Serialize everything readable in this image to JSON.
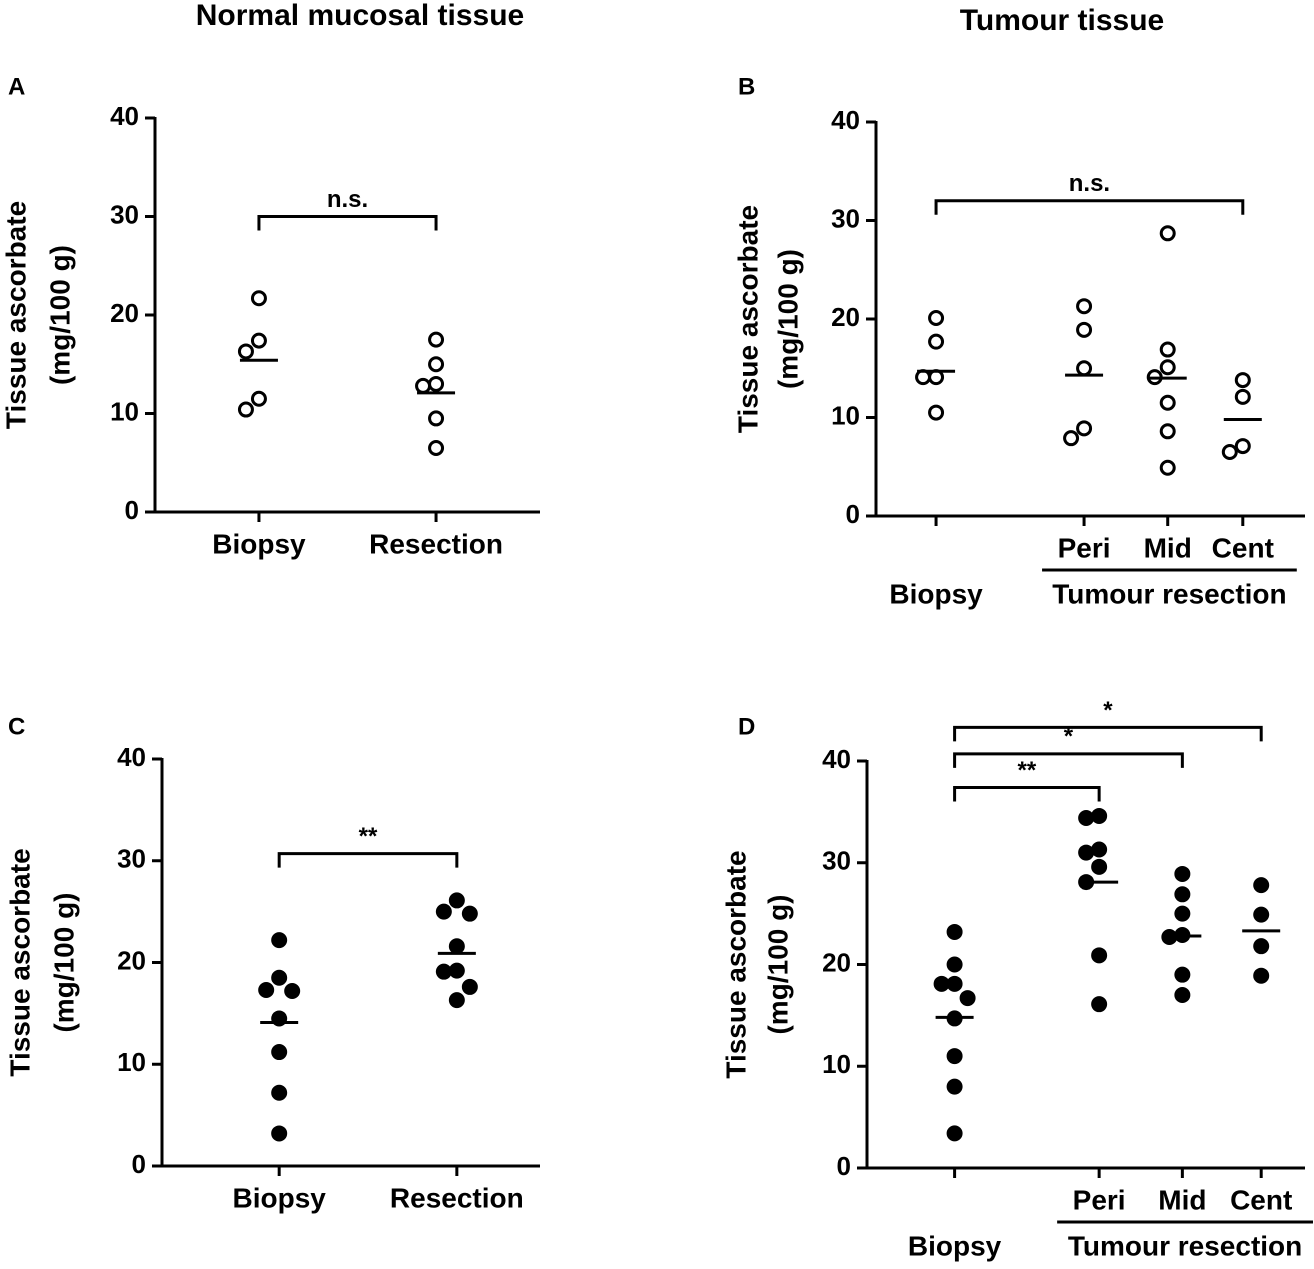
{
  "column_titles": [
    "Normal mucosal tissue",
    "Tumour tissue"
  ],
  "chart_data": [
    {
      "type": "dotplot",
      "panel": "A",
      "ylabel": [
        "Tissue ascorbate",
        "(mg/100 g)"
      ],
      "categories": [
        "Biopsy",
        "Resection"
      ],
      "values": [
        [
          21.7,
          17.4,
          16.3,
          11.5,
          10.4
        ],
        [
          17.5,
          15.0,
          13.0,
          12.8,
          9.5,
          6.5
        ]
      ],
      "medians": [
        15.4,
        12.1
      ],
      "filled": false,
      "ylim": [
        0,
        40
      ],
      "yticks": [
        0,
        10,
        20,
        30,
        40
      ],
      "brackets": [
        {
          "between": [
            "Biopsy",
            "Resection"
          ],
          "y": 30,
          "label": "n.s."
        }
      ]
    },
    {
      "type": "dotplot",
      "panel": "B",
      "ylabel": [
        "Tissue ascorbate",
        "(mg/100 g)"
      ],
      "categories": [
        "Biopsy",
        "Peri",
        "Mid",
        "Cent"
      ],
      "values": [
        [
          20.1,
          17.7,
          14.1,
          14.1,
          10.5
        ],
        [
          21.3,
          18.9,
          15.0,
          8.9,
          7.9
        ],
        [
          28.7,
          16.9,
          15.1,
          14.1,
          11.5,
          8.6,
          4.9
        ],
        [
          13.8,
          12.1,
          7.1,
          6.5
        ]
      ],
      "medians": [
        14.7,
        14.3,
        14.0,
        9.8
      ],
      "filled": false,
      "ylim": [
        0,
        40
      ],
      "yticks": [
        0,
        10,
        20,
        30,
        40
      ],
      "x_groups": [
        {
          "label": "Tumour resection",
          "members": [
            "Peri",
            "Mid",
            "Cent"
          ]
        }
      ],
      "brackets": [
        {
          "between": [
            "Biopsy",
            "Cent"
          ],
          "y": 32,
          "label": "n.s."
        }
      ]
    },
    {
      "type": "dotplot",
      "panel": "C",
      "ylabel": [
        "Tissue ascorbate",
        "(mg/100 g)"
      ],
      "categories": [
        "Biopsy",
        "Resection"
      ],
      "values": [
        [
          22.2,
          18.5,
          17.3,
          17.2,
          14.5,
          11.2,
          7.2,
          3.2
        ],
        [
          26.1,
          25.0,
          24.8,
          21.6,
          19.2,
          19.1,
          17.6,
          16.3
        ]
      ],
      "medians": [
        14.1,
        20.9
      ],
      "filled": true,
      "ylim": [
        0,
        40
      ],
      "yticks": [
        0,
        10,
        20,
        30,
        40
      ],
      "brackets": [
        {
          "between": [
            "Biopsy",
            "Resection"
          ],
          "y": 30.7,
          "label": "**"
        }
      ]
    },
    {
      "type": "dotplot",
      "panel": "D",
      "ylabel": [
        "Tissue ascorbate",
        "(mg/100 g)"
      ],
      "categories": [
        "Biopsy",
        "Peri",
        "Mid",
        "Cent"
      ],
      "values": [
        [
          23.2,
          20.0,
          18.1,
          18.1,
          16.7,
          14.7,
          11.0,
          8.0,
          3.4
        ],
        [
          34.6,
          34.4,
          31.3,
          31.0,
          29.6,
          28.1,
          20.9,
          16.1
        ],
        [
          28.9,
          26.9,
          25.0,
          22.9,
          22.7,
          19.0,
          17.0
        ],
        [
          27.8,
          24.9,
          21.8,
          18.9
        ]
      ],
      "medians": [
        14.8,
        28.1,
        22.8,
        23.3
      ],
      "filled": true,
      "ylim": [
        0,
        40
      ],
      "yticks": [
        0,
        10,
        20,
        30,
        40
      ],
      "x_groups": [
        {
          "label": "Tumour resection",
          "members": [
            "Peri",
            "Mid",
            "Cent"
          ]
        }
      ],
      "brackets": [
        {
          "between": [
            "Biopsy",
            "Peri"
          ],
          "y": 37.4,
          "label": "**"
        },
        {
          "between": [
            "Biopsy",
            "Mid"
          ],
          "y": 40.7,
          "label": "*"
        },
        {
          "between": [
            "Biopsy",
            "Cent"
          ],
          "y": 43.3,
          "label": "*"
        }
      ]
    }
  ]
}
